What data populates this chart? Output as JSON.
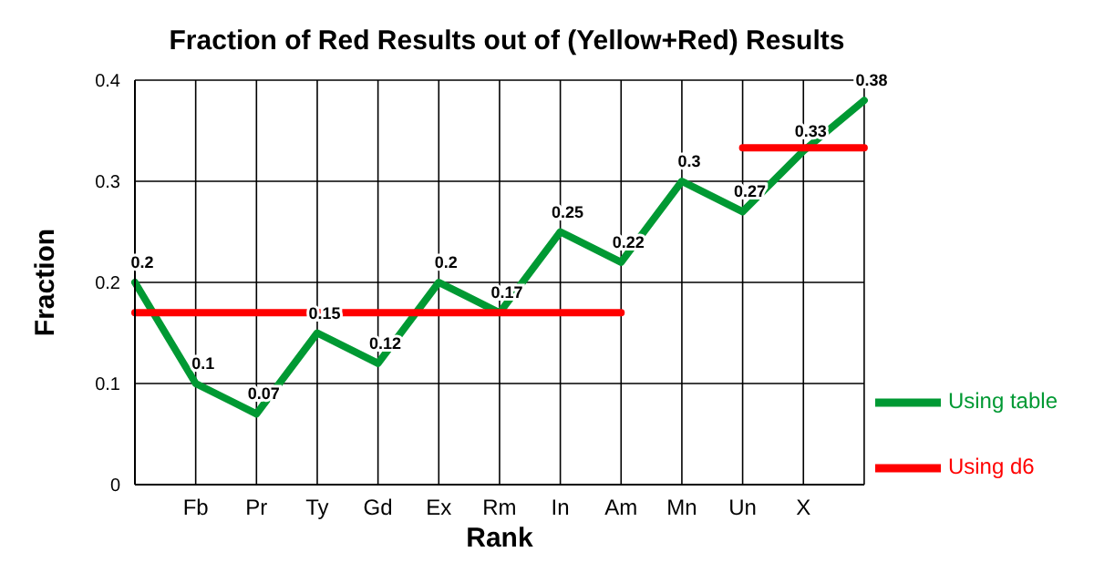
{
  "chart_data": {
    "type": "line",
    "title": "Fraction of Red Results out of (Yellow+Red) Results",
    "xlabel": "Rank",
    "ylabel": "Fraction",
    "categories": [
      null,
      "Fb",
      "Pr",
      "Ty",
      "Gd",
      "Ex",
      "Rm",
      "In",
      "Am",
      "Mn",
      "Un",
      "X",
      null
    ],
    "series": [
      {
        "name": "Using table",
        "color": "#009933",
        "values": [
          0.2,
          0.1,
          0.07,
          0.15,
          0.12,
          0.2,
          0.17,
          0.25,
          0.22,
          0.3,
          0.27,
          0.33,
          0.38
        ],
        "value_labels": [
          "0.2",
          "0.1",
          "0.07",
          "0.15",
          "0.12",
          "0.2",
          "0.17",
          "0.25",
          "0.22",
          "0.3",
          "0.27",
          "0.33",
          "0.38"
        ]
      },
      {
        "name": "Using d6",
        "color": "#ff0000",
        "values": [
          0.17,
          0.17,
          0.17,
          0.17,
          0.17,
          0.17,
          0.17,
          0.17,
          0.17,
          null,
          0.333,
          0.333,
          0.333
        ]
      }
    ],
    "ylim": [
      0,
      0.4
    ],
    "yticks": [
      0,
      0.1,
      0.2,
      0.3,
      0.4
    ],
    "grid": true,
    "legend": "right",
    "marker": "none",
    "line_style": "solid"
  }
}
